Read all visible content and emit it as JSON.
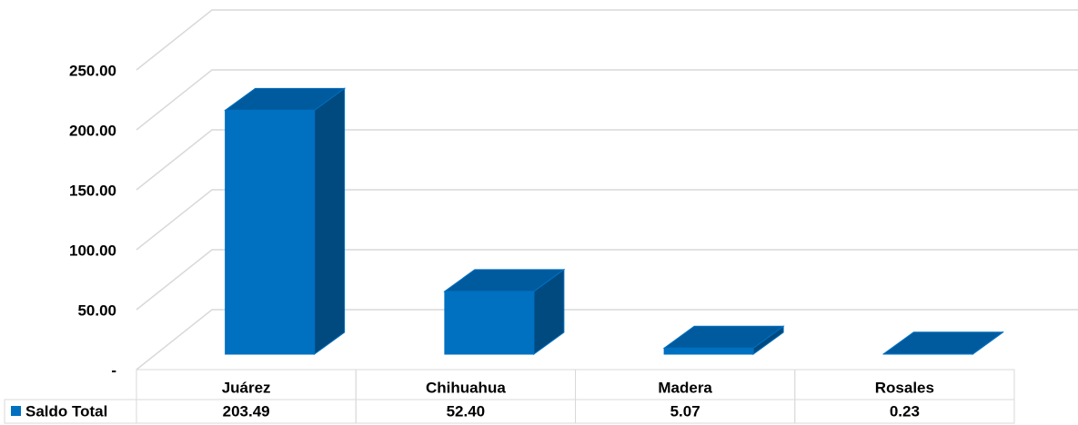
{
  "chart_data": {
    "type": "bar3d",
    "categories": [
      "Juárez",
      "Chihuahua",
      "Madera",
      "Rosales"
    ],
    "series": [
      {
        "name": "Saldo Total",
        "color": "#0070c0",
        "values": [
          203.49,
          52.4,
          5.07,
          0.23
        ],
        "value_labels": [
          "203.49",
          "52.40",
          "5.07",
          "0.23"
        ]
      }
    ],
    "ylim": [
      0,
      250
    ],
    "yticks": [
      {
        "value": 0,
        "label": "-"
      },
      {
        "value": 50,
        "label": "50.00"
      },
      {
        "value": 100,
        "label": "100.00"
      },
      {
        "value": 150,
        "label": "150.00"
      },
      {
        "value": 200,
        "label": "200.00"
      },
      {
        "value": 250,
        "label": "250.00"
      }
    ],
    "grid": true
  }
}
